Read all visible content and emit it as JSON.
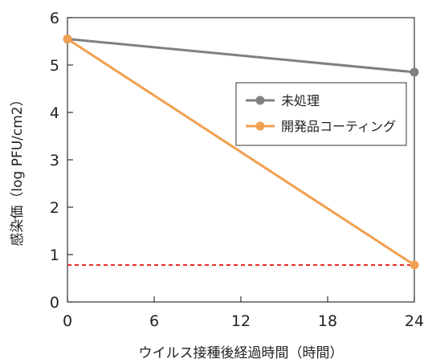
{
  "chart_data": {
    "type": "line",
    "xlabel": "ウイルス接種後経過時間（時間）",
    "ylabel": "感染価（log PFU/cm2）",
    "x": [
      0,
      24
    ],
    "xticks": [
      0,
      6,
      12,
      18,
      24
    ],
    "yticks": [
      0,
      1,
      2,
      3,
      4,
      5,
      6
    ],
    "xlim": [
      0,
      24
    ],
    "ylim": [
      0,
      6
    ],
    "grid": false,
    "legend_position": "right",
    "series": [
      {
        "name": "未処理",
        "values": [
          5.55,
          4.85
        ],
        "color": "#808080"
      },
      {
        "name": "開発品コーティング",
        "values": [
          5.55,
          0.78
        ],
        "color": "#f0a050"
      }
    ],
    "reference_line": {
      "y": 0.78,
      "color": "#e0302a",
      "style": "dashed"
    }
  }
}
